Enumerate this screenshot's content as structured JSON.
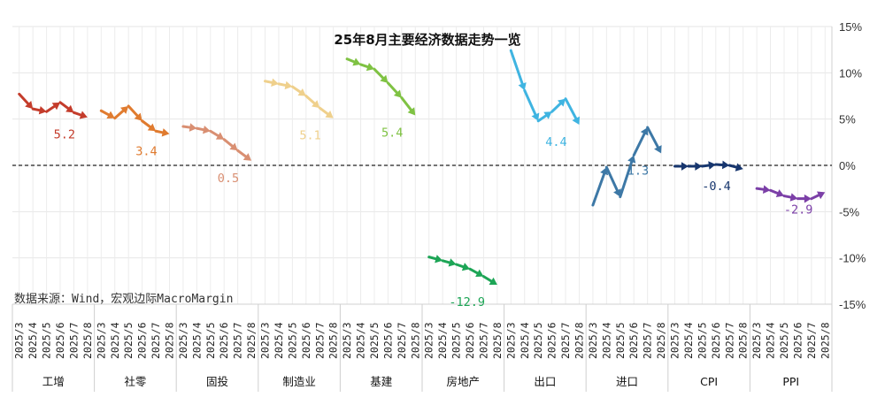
{
  "chart_data": {
    "type": "line",
    "title": "25年8月主要经济数据走势一览",
    "source": "数据来源：Wind，宏观边际MacroMargin",
    "ylim": [
      -15,
      15
    ],
    "yticks": [
      "15%",
      "10%",
      "5%",
      "0%",
      "-5%",
      "-10%",
      "-15%"
    ],
    "months": [
      "2025/3",
      "2025/4",
      "2025/5",
      "2025/6",
      "2025/7",
      "2025/8"
    ],
    "grid": true,
    "series": [
      {
        "name": "工增",
        "color": "#c43c2b",
        "values": [
          7.7,
          6.1,
          5.8,
          6.8,
          5.7,
          5.2
        ],
        "end_label": "5.2"
      },
      {
        "name": "社零",
        "color": "#e07b2f",
        "values": [
          5.9,
          5.1,
          6.4,
          4.8,
          3.7,
          3.4
        ],
        "end_label": "3.4"
      },
      {
        "name": "固投",
        "color": "#d98f72",
        "values": [
          4.2,
          4.0,
          3.7,
          2.8,
          1.6,
          0.5
        ],
        "end_label": "0.5"
      },
      {
        "name": "制造业",
        "color": "#efd08c",
        "values": [
          9.1,
          8.8,
          8.5,
          7.5,
          6.2,
          5.1
        ],
        "end_label": "5.1"
      },
      {
        "name": "基建",
        "color": "#7fc243",
        "values": [
          11.5,
          10.9,
          10.4,
          8.9,
          7.3,
          5.4
        ],
        "end_label": "5.4"
      },
      {
        "name": "房地产",
        "color": "#1da556",
        "values": [
          -9.9,
          -10.3,
          -10.7,
          -11.2,
          -12.0,
          -12.9
        ],
        "end_label": "-12.9"
      },
      {
        "name": "出口",
        "color": "#3fb4e1",
        "values": [
          12.4,
          8.1,
          4.8,
          5.8,
          7.2,
          4.4
        ],
        "end_label": "4.4"
      },
      {
        "name": "进口",
        "color": "#3d78a6",
        "values": [
          -4.3,
          -0.2,
          -3.4,
          1.1,
          4.1,
          1.3
        ],
        "end_label": "1.3"
      },
      {
        "name": "CPI",
        "color": "#17366e",
        "values": [
          -0.1,
          -0.1,
          -0.1,
          0.1,
          0.0,
          -0.4
        ],
        "end_label": "-0.4"
      },
      {
        "name": "PPI",
        "color": "#7b3fa7",
        "values": [
          -2.5,
          -2.7,
          -3.3,
          -3.6,
          -3.6,
          -2.9
        ],
        "end_label": "-2.9"
      }
    ]
  }
}
